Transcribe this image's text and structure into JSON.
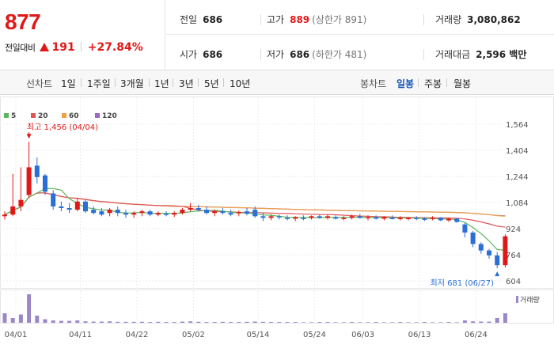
{
  "header": {
    "price": "877",
    "change_label": "전일대비",
    "change_amount": "191",
    "change_pct": "+27.84%",
    "stats": {
      "prev_close": {
        "label": "전일",
        "value": "686"
      },
      "high": {
        "label": "고가",
        "value": "889",
        "sub": "(상한가 891)"
      },
      "volume": {
        "label": "거래량",
        "value": "3,080,862"
      },
      "open": {
        "label": "시가",
        "value": "686"
      },
      "low": {
        "label": "저가",
        "value": "686",
        "sub": "(하한가 481)"
      },
      "amount": {
        "label": "거래대금",
        "value": "2,596 백만"
      }
    }
  },
  "toolbar": {
    "line_chart_label": "선차트",
    "ranges": [
      "1일",
      "1주일",
      "3개월",
      "1년",
      "3년",
      "5년",
      "10년"
    ],
    "candle_label": "봉차트",
    "candle_periods": [
      "일봉",
      "주봉",
      "월봉"
    ],
    "selected_candle": "일봉"
  },
  "colors": {
    "up": "#e01818",
    "down": "#2a6fd6",
    "ma5": "#5cb85c",
    "ma20": "#e05555",
    "ma60": "#f0a040",
    "ma120": "#9966cc",
    "volume": "#9b86c8"
  },
  "chart_data": {
    "type": "candlestick",
    "legend": [
      {
        "name": "5",
        "color": "#5cb85c"
      },
      {
        "name": "20",
        "color": "#e05555"
      },
      {
        "name": "60",
        "color": "#f0a040"
      },
      {
        "name": "120",
        "color": "#9966cc"
      }
    ],
    "y_ticks": [
      "1,564",
      "1,404",
      "1,244",
      "1,084",
      "924",
      "764",
      "604"
    ],
    "ylim": [
      604,
      1564
    ],
    "x_ticks": [
      "04/01",
      "04/11",
      "04/22",
      "05/02",
      "05/14",
      "05/24",
      "06/03",
      "06/13",
      "06/24"
    ],
    "max_annotation": "최고 1,456 (04/04)",
    "min_annotation": "최저 681 (06/27)",
    "volume_label": "거래량",
    "candles": [
      [
        1000,
        1030,
        980,
        1010
      ],
      [
        1010,
        1260,
        1000,
        1060
      ],
      [
        1060,
        1300,
        1030,
        1100
      ],
      [
        1130,
        1456,
        1110,
        1300
      ],
      [
        1310,
        1360,
        1200,
        1240
      ],
      [
        1250,
        1260,
        1130,
        1150
      ],
      [
        1140,
        1160,
        1040,
        1060
      ],
      [
        1060,
        1090,
        1030,
        1050
      ],
      [
        1050,
        1080,
        1020,
        1040
      ],
      [
        1040,
        1110,
        1030,
        1090
      ],
      [
        1090,
        1100,
        1020,
        1030
      ],
      [
        1040,
        1060,
        1010,
        1020
      ],
      [
        1030,
        1050,
        1000,
        1010
      ],
      [
        1020,
        1050,
        1000,
        1040
      ],
      [
        1040,
        1060,
        1000,
        1020
      ],
      [
        1020,
        1040,
        990,
        1010
      ],
      [
        1010,
        1030,
        990,
        1020
      ],
      [
        1020,
        1040,
        1000,
        1030
      ],
      [
        1030,
        1040,
        1000,
        1010
      ],
      [
        1010,
        1030,
        1000,
        1020
      ],
      [
        1015,
        1030,
        1000,
        1010
      ],
      [
        1010,
        1030,
        995,
        1020
      ],
      [
        1020,
        1050,
        1010,
        1040
      ],
      [
        1040,
        1080,
        1030,
        1050
      ],
      [
        1050,
        1070,
        1030,
        1040
      ],
      [
        1040,
        1060,
        1010,
        1020
      ],
      [
        1020,
        1040,
        1000,
        1030
      ],
      [
        1030,
        1050,
        1010,
        1020
      ],
      [
        1020,
        1040,
        1000,
        1010
      ],
      [
        1020,
        1035,
        1000,
        1025
      ],
      [
        1030,
        1050,
        1005,
        1015
      ],
      [
        1040,
        1060,
        990,
        1000
      ],
      [
        1000,
        1020,
        970,
        990
      ],
      [
        990,
        1010,
        975,
        1000
      ],
      [
        1000,
        1010,
        980,
        995
      ],
      [
        990,
        1005,
        975,
        985
      ],
      [
        985,
        1000,
        970,
        995
      ],
      [
        990,
        1005,
        975,
        985
      ],
      [
        990,
        1005,
        980,
        1000
      ],
      [
        1000,
        1010,
        985,
        990
      ],
      [
        990,
        1010,
        980,
        1000
      ],
      [
        995,
        1005,
        980,
        985
      ],
      [
        985,
        1000,
        975,
        990
      ],
      [
        990,
        1010,
        980,
        1000
      ],
      [
        1000,
        1015,
        985,
        990
      ],
      [
        990,
        1005,
        975,
        995
      ],
      [
        995,
        1005,
        980,
        985
      ],
      [
        985,
        1000,
        975,
        995
      ],
      [
        990,
        1005,
        980,
        985
      ],
      [
        985,
        1000,
        975,
        990
      ],
      [
        985,
        995,
        975,
        990
      ],
      [
        990,
        1000,
        975,
        985
      ],
      [
        985,
        995,
        970,
        980
      ],
      [
        985,
        1000,
        975,
        990
      ],
      [
        990,
        995,
        970,
        975
      ],
      [
        975,
        990,
        965,
        985
      ],
      [
        985,
        990,
        960,
        965
      ],
      [
        950,
        960,
        870,
        900
      ],
      [
        900,
        910,
        810,
        830
      ],
      [
        830,
        840,
        770,
        790
      ],
      [
        790,
        800,
        740,
        760
      ],
      [
        760,
        780,
        681,
        700
      ],
      [
        700,
        889,
        686,
        877
      ]
    ],
    "volume": [
      40,
      20,
      35,
      120,
      30,
      15,
      10,
      8,
      8,
      10,
      6,
      5,
      5,
      6,
      4,
      4,
      4,
      4,
      3,
      4,
      3,
      3,
      5,
      6,
      4,
      3,
      3,
      4,
      3,
      3,
      4,
      5,
      4,
      3,
      3,
      3,
      3,
      2,
      2,
      3,
      3,
      2,
      2,
      3,
      2,
      2,
      3,
      2,
      2,
      3,
      2,
      2,
      3,
      2,
      2,
      3,
      2,
      10,
      6,
      5,
      5,
      20,
      40
    ]
  }
}
